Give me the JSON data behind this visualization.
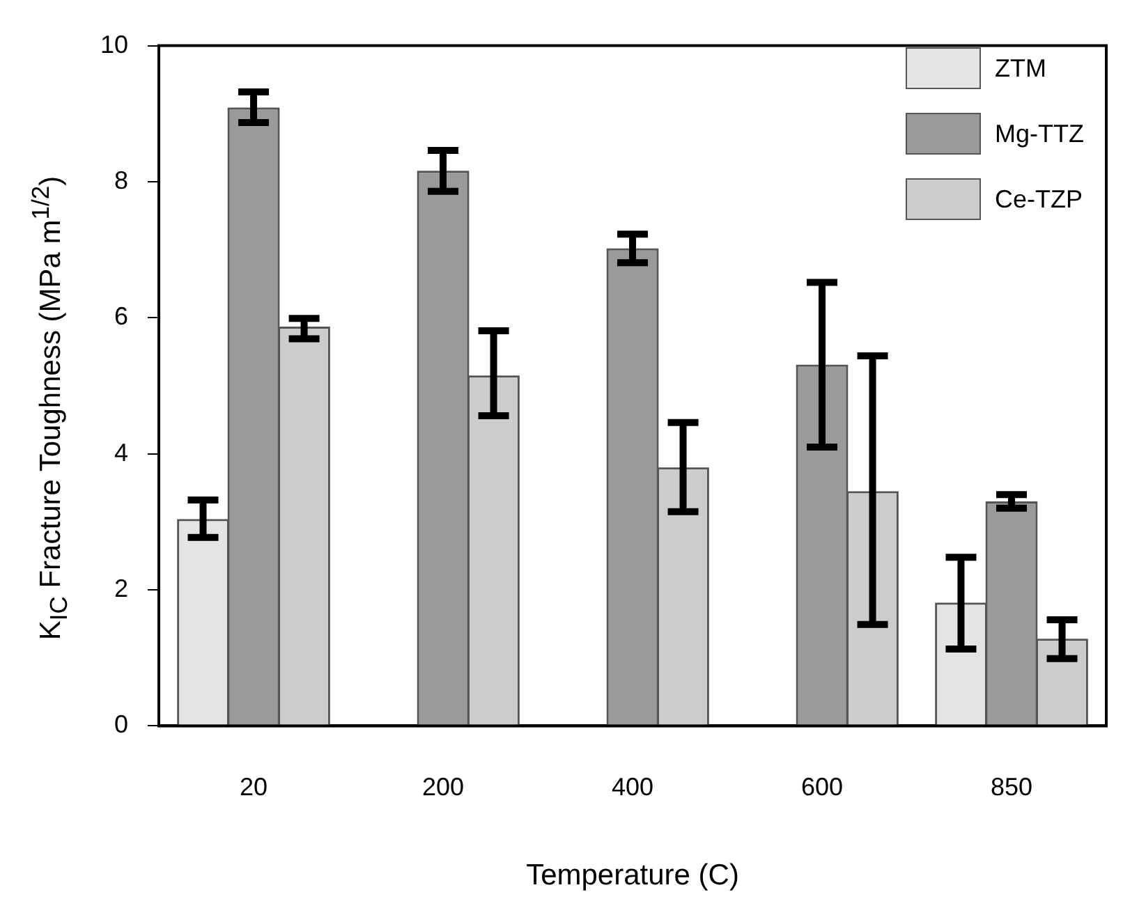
{
  "chart_data": {
    "type": "bar",
    "xlabel": "Temperature (C)",
    "ylabel": "K$_{IC}$ Fracture Toughness (MPa m$^{1/2}$)",
    "categories": [
      "20",
      "200",
      "400",
      "600",
      "850"
    ],
    "series": [
      {
        "name": "ZTM",
        "color": "#e4e4e4",
        "values": [
          3.03,
          null,
          null,
          null,
          1.8
        ],
        "errors": [
          [
            2.77,
            3.32
          ],
          null,
          null,
          null,
          [
            1.13,
            2.48
          ]
        ]
      },
      {
        "name": "Mg-TTZ",
        "color": "#9a9a9a",
        "values": [
          9.08,
          8.15,
          7.01,
          5.3,
          3.29
        ],
        "errors": [
          [
            8.87,
            9.32
          ],
          [
            7.86,
            8.46
          ],
          [
            6.81,
            7.23
          ],
          [
            4.1,
            6.52
          ],
          [
            3.2,
            3.4
          ]
        ]
      },
      {
        "name": "Ce-TZP",
        "color": "#cccccc",
        "values": [
          5.86,
          5.14,
          3.79,
          3.44,
          1.27
        ],
        "errors": [
          [
            5.69,
            5.99
          ],
          [
            4.56,
            5.81
          ],
          [
            3.15,
            4.46
          ],
          [
            1.49,
            5.44
          ],
          [
            0.99,
            1.56
          ]
        ]
      }
    ],
    "ylim": [
      0,
      10
    ],
    "yticks": [
      0,
      2,
      4,
      6,
      8,
      10
    ],
    "grid": false,
    "legend": "top right"
  }
}
